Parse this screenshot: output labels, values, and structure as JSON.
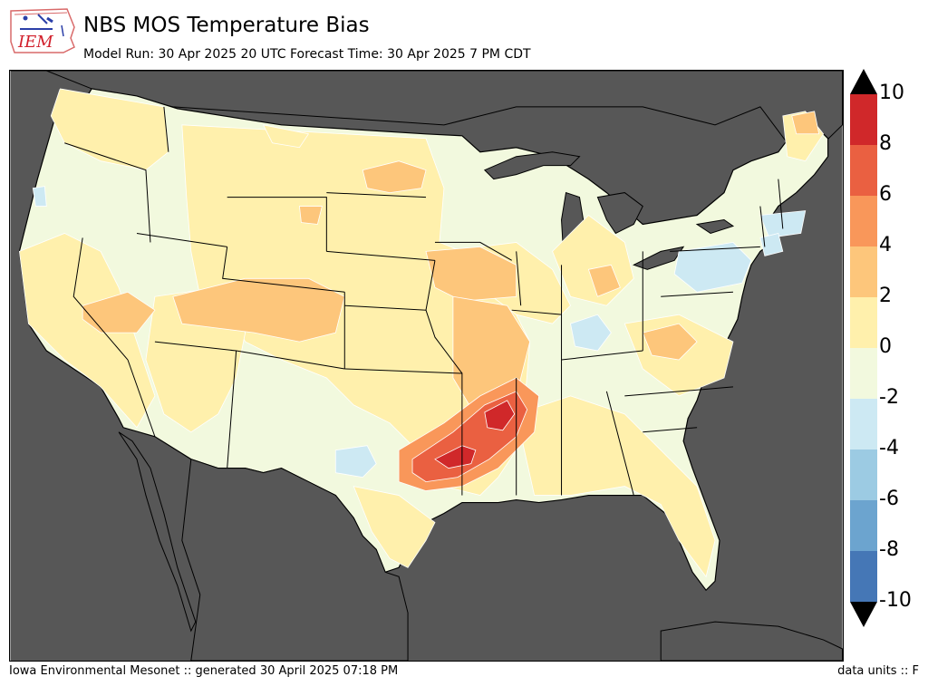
{
  "header": {
    "logo_text": "IEM",
    "title": "NBS MOS Temperature Bias",
    "subtitle": "Model Run: 30 Apr 2025 20 UTC Forecast Time: 30 Apr 2025 7 PM CDT"
  },
  "colors": {
    "ocean": "#575757",
    "land_base": "#f2f9de",
    "c_0_2": "#fff0ac",
    "c_2_4": "#fdc67b",
    "c_4_6": "#f9975a",
    "c_6_8": "#ea6041",
    "c_8_10": "#d0282a",
    "c_m2_0": "#f2f9de",
    "c_m4_m2": "#cde9f3"
  },
  "colorbar": {
    "ticks": [
      "10",
      "8",
      "6",
      "4",
      "2",
      "0",
      "-2",
      "-4",
      "-6",
      "-8",
      "-10"
    ],
    "bins": [
      {
        "range": "8 to 10",
        "color": "#d0282a"
      },
      {
        "range": "6 to 8",
        "color": "#ea6041"
      },
      {
        "range": "4 to 6",
        "color": "#f9975a"
      },
      {
        "range": "2 to 4",
        "color": "#fdc67b"
      },
      {
        "range": "0 to 2",
        "color": "#fff0ac"
      },
      {
        "range": "-2 to 0",
        "color": "#f2f9de"
      },
      {
        "range": "-4 to -2",
        "color": "#cde9f3"
      },
      {
        "range": "-6 to -4",
        "color": "#9ccbe3"
      },
      {
        "range": "-8 to -6",
        "color": "#6ca4cf"
      },
      {
        "range": "-10 to -8",
        "color": "#4577b6"
      }
    ],
    "over_color": "#000000",
    "under_color": "#000000"
  },
  "footer": {
    "source": "Iowa Environmental Mesonet :: generated 30 April 2025 07:18 PM",
    "units": "data units :: F"
  }
}
